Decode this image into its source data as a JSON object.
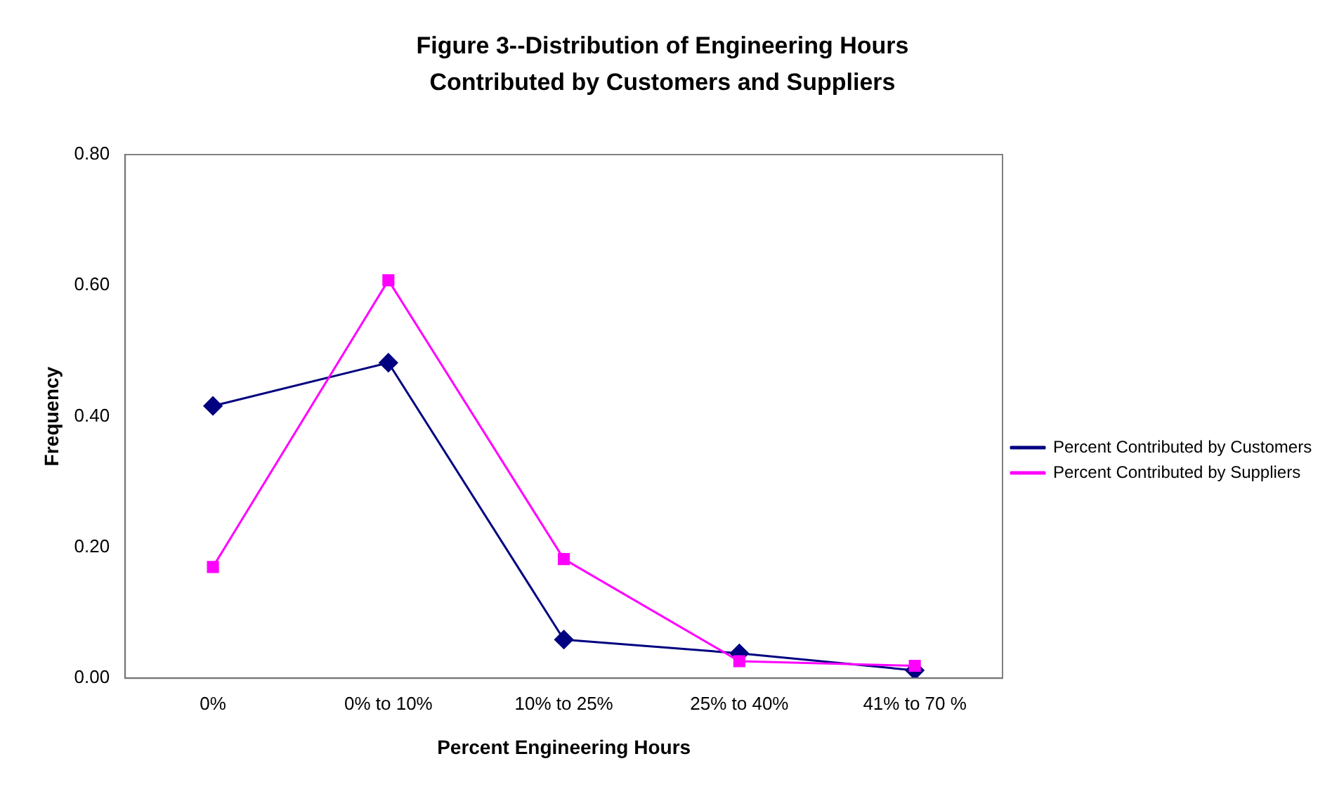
{
  "chart_data": {
    "type": "line",
    "title": "Figure 3--Distribution of  Engineering Hours Contributed by Customers and Suppliers",
    "xlabel": "Percent Engineering Hours",
    "ylabel": "Frequency",
    "categories": [
      "0%",
      "0% to 10%",
      "10% to 25%",
      "25% to 40%",
      "41% to 70 %"
    ],
    "series": [
      {
        "name": "Percent Contributed by Customers",
        "color": "#000080",
        "marker": "diamond",
        "values": [
          0.416,
          0.482,
          0.059,
          0.038,
          0.012
        ]
      },
      {
        "name": "Percent Contributed by Suppliers",
        "color": "#ff00ff",
        "marker": "square",
        "values": [
          0.17,
          0.608,
          0.182,
          0.026,
          0.019
        ]
      }
    ],
    "ylim": [
      0,
      0.8
    ],
    "yticks": [
      {
        "value": 0,
        "label": "0.00"
      },
      {
        "value": 0.2,
        "label": "0.20"
      },
      {
        "value": 0.4,
        "label": "0.40"
      },
      {
        "value": 0.6,
        "label": "0.60"
      },
      {
        "value": 0.8,
        "label": "0.80"
      }
    ],
    "grid": false,
    "legend": "right"
  }
}
